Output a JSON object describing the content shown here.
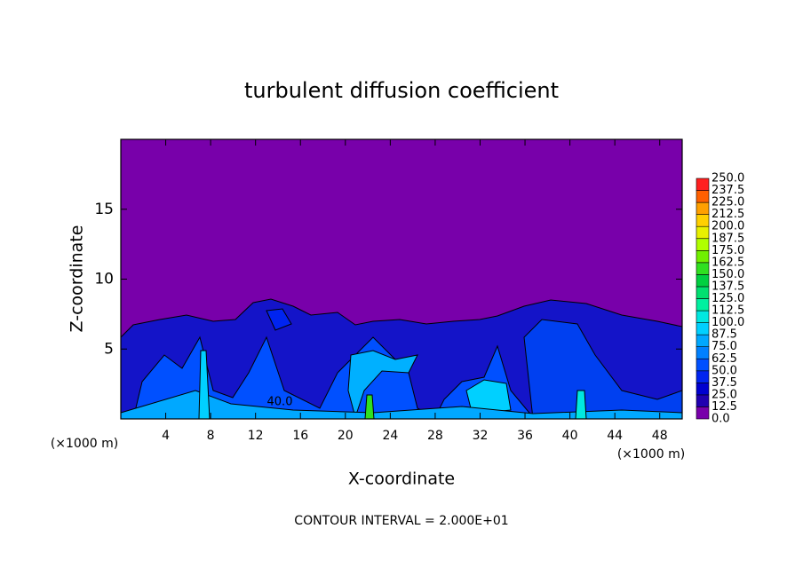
{
  "chart_data": {
    "type": "contour",
    "title": "turbulent diffusion coefficient",
    "x_label": "X-coordinate",
    "y_label": "Z-coordinate",
    "x_unit": "(×1000 m)",
    "y_unit": "(×1000 m)",
    "footer": "CONTOUR INTERVAL = 2.000E+01",
    "annotations": [
      "40.0"
    ],
    "xlim": [
      0,
      50
    ],
    "xticks": [
      4,
      8,
      12,
      16,
      20,
      24,
      28,
      32,
      36,
      40,
      44,
      48
    ],
    "ylim": [
      0,
      20
    ],
    "yticks": [
      5,
      10,
      15
    ],
    "colorbar": {
      "levels": [
        {
          "value": 0,
          "label": "0.0"
        },
        {
          "value": 12.5,
          "label": "12.5"
        },
        {
          "value": 25,
          "label": "25.0"
        },
        {
          "value": 37.5,
          "label": "37.5"
        },
        {
          "value": 50,
          "label": "50.0"
        },
        {
          "value": 62.5,
          "label": "62.5"
        },
        {
          "value": 75,
          "label": "75.0"
        },
        {
          "value": 87.5,
          "label": "87.5"
        },
        {
          "value": 100,
          "label": "100.0"
        },
        {
          "value": 112.5,
          "label": "112.5"
        },
        {
          "value": 125,
          "label": "125.0"
        },
        {
          "value": 137.5,
          "label": "137.5"
        },
        {
          "value": 150,
          "label": "150.0"
        },
        {
          "value": 162.5,
          "label": "162.5"
        },
        {
          "value": 175,
          "label": "175.0"
        },
        {
          "value": 187.5,
          "label": "187.5"
        },
        {
          "value": 200,
          "label": "200.0"
        },
        {
          "value": 212.5,
          "label": "212.5"
        },
        {
          "value": 225,
          "label": "225.0"
        },
        {
          "value": 237.5,
          "label": "237.5"
        },
        {
          "value": 250,
          "label": "250.0"
        }
      ],
      "colors": [
        "#7800aa",
        "#2000b0",
        "#0000d0",
        "#0024f0",
        "#0050ff",
        "#0080ff",
        "#00a8ff",
        "#00d0ff",
        "#00e8e0",
        "#00f0a0",
        "#00e070",
        "#00d040",
        "#30e020",
        "#70f000",
        "#b0ff00",
        "#e8f000",
        "#ffd000",
        "#ffa000",
        "#ff6000",
        "#ff2020"
      ]
    }
  }
}
